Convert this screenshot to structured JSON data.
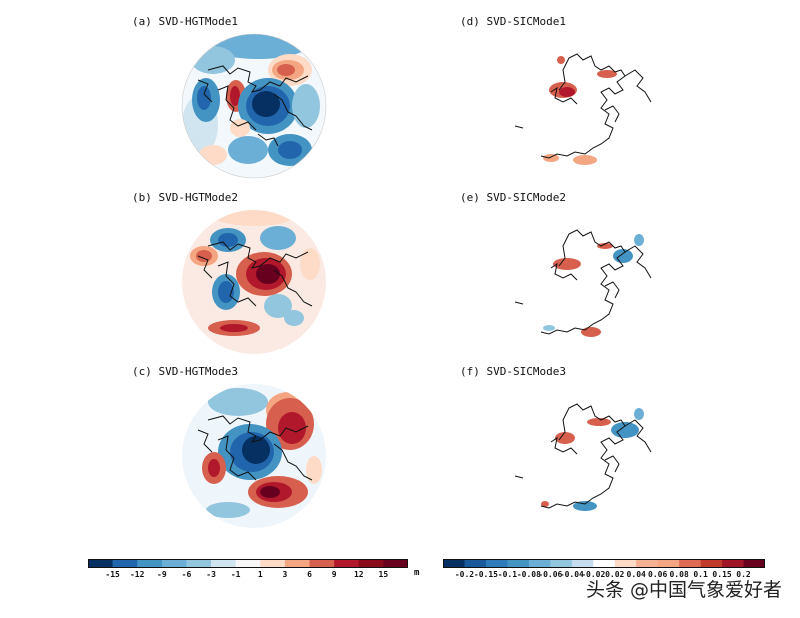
{
  "panels": [
    {
      "title": "(a)  SVD-HGTMode1"
    },
    {
      "title": "(b)  SVD-HGTMode2"
    },
    {
      "title": "(c)  SVD-HGTMode3"
    },
    {
      "title": "(d)  SVD-SICMode1"
    },
    {
      "title": "(e)  SVD-SICMode2"
    },
    {
      "title": "(f)  SVD-SICMode3"
    }
  ],
  "colorbars": {
    "hgt": {
      "ticks": [
        "-15",
        "-12",
        "-9",
        "-6",
        "-3",
        "-1",
        "1",
        "3",
        "6",
        "9",
        "12",
        "15"
      ],
      "unit": "m",
      "colors": [
        "#053061",
        "#2166ac",
        "#4393c3",
        "#6baed6",
        "#92c5de",
        "#d1e5f0",
        "#f7f7f7",
        "#fddbc7",
        "#f4a582",
        "#d6604d",
        "#b2182b",
        "#8b0a1a",
        "#67001f"
      ]
    },
    "sic": {
      "ticks": [
        "-0.2",
        "-0.15",
        "-0.1",
        "-0.08",
        "-0.06",
        "-0.04",
        "-0.02",
        "0.02",
        "0.04",
        "0.06",
        "0.08",
        "0.1",
        "0.15",
        "0.2"
      ],
      "colors": [
        "#053061",
        "#1b5a9a",
        "#2f7ab8",
        "#4393c3",
        "#6baed6",
        "#92c5de",
        "#c6dcef",
        "#ffffff",
        "#fddbc7",
        "#f6b093",
        "#f4a582",
        "#e06b55",
        "#c0392b",
        "#a01525",
        "#67001f"
      ]
    }
  },
  "watermark": "头条 @中国气象爱好者"
}
